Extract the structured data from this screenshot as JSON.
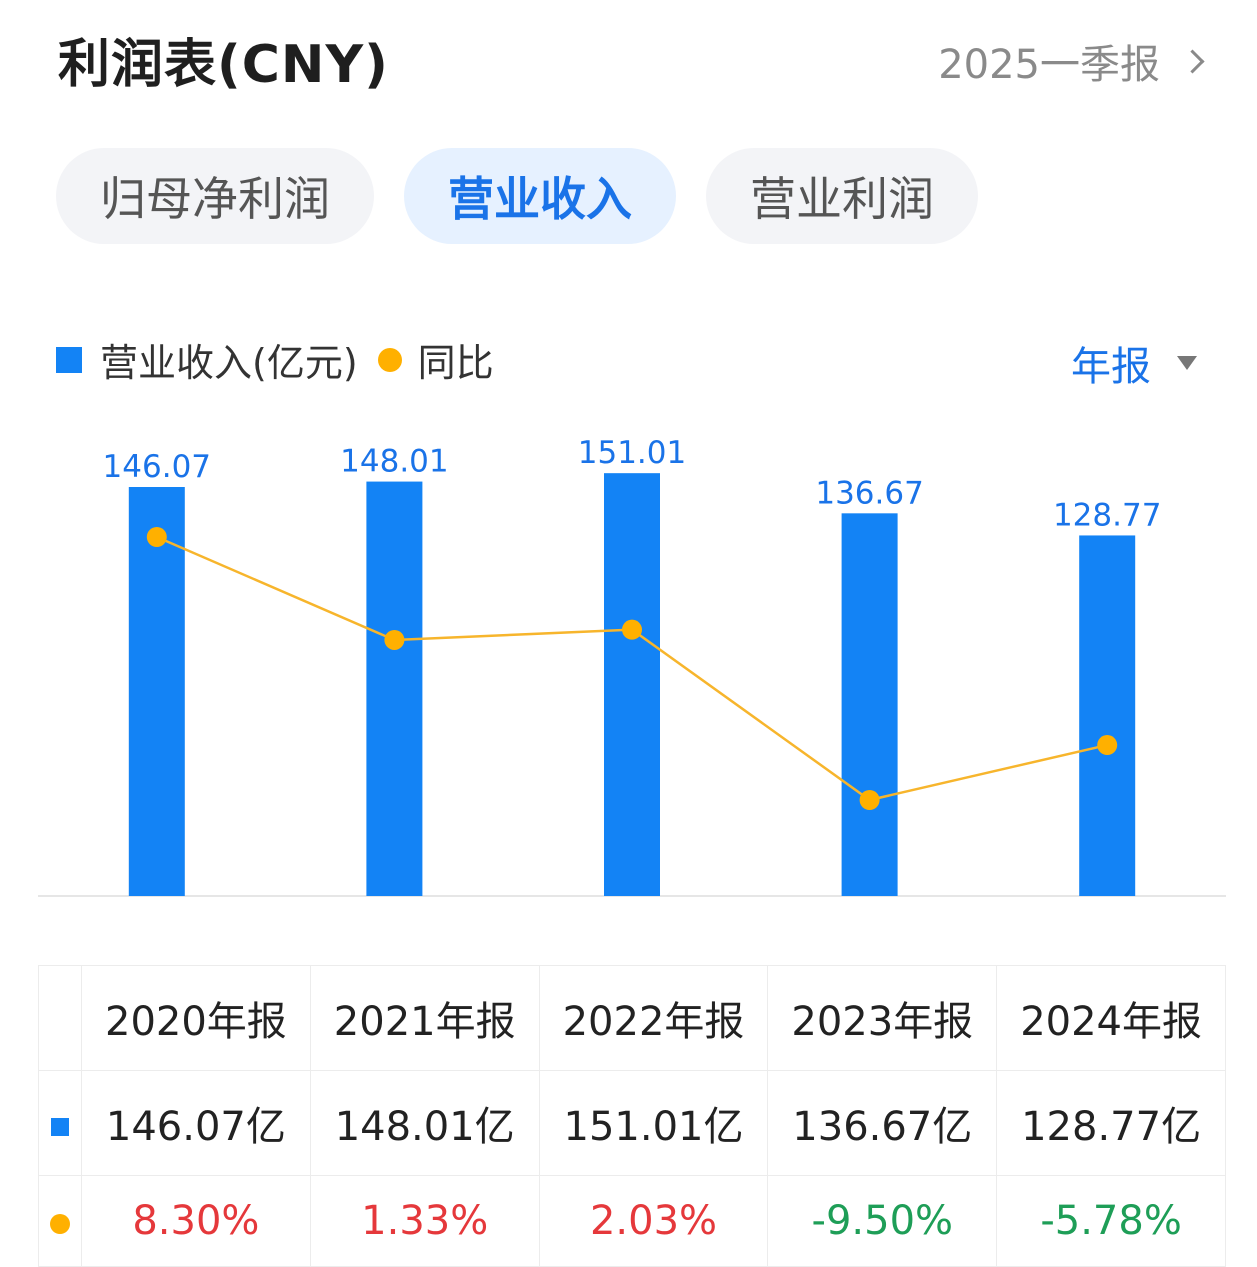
{
  "header": {
    "title": "利润表(CNY)",
    "period": "2025一季报"
  },
  "tabs": [
    {
      "label": "归母净利润",
      "active": false
    },
    {
      "label": "营业收入",
      "active": true
    },
    {
      "label": "营业利润",
      "active": false
    }
  ],
  "legend": {
    "bar_label": "营业收入(亿元)",
    "line_label": "同比"
  },
  "range_select": {
    "label": "年报"
  },
  "colors": {
    "bar": "#1383f5",
    "line": "#f7b52c",
    "dot": "#ffb000",
    "positive": "#e5383b",
    "negative": "#1e9e57",
    "accent": "#1a73e8"
  },
  "chart_data": {
    "type": "bar",
    "categories": [
      "2020年报",
      "2021年报",
      "2022年报",
      "2023年报",
      "2024年报"
    ],
    "series": [
      {
        "name": "营业收入(亿元)",
        "type": "bar",
        "values": [
          146.07,
          148.01,
          151.01,
          136.67,
          128.77
        ]
      },
      {
        "name": "同比",
        "type": "line",
        "values": [
          8.3,
          1.33,
          2.03,
          -9.5,
          -5.78
        ]
      }
    ],
    "data_labels": [
      "146.07",
      "148.01",
      "151.01",
      "136.67",
      "128.77"
    ],
    "legend_position": "top-left"
  },
  "table": {
    "headers": [
      "2020年报",
      "2021年报",
      "2022年报",
      "2023年报",
      "2024年报"
    ],
    "revenue": [
      "146.07亿",
      "148.01亿",
      "151.01亿",
      "136.67亿",
      "128.77亿"
    ],
    "yoy": [
      "8.30%",
      "1.33%",
      "2.03%",
      "-9.50%",
      "-5.78%"
    ]
  }
}
